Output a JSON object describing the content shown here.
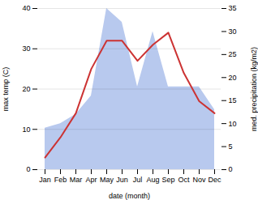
{
  "chart_data": {
    "type": "line",
    "xlabel": "date (month)",
    "ylabel": "max temp (C)",
    "y2label": "med. precipitation (kg/m2)",
    "categories": [
      "Jan",
      "Feb",
      "Mar",
      "Apr",
      "May",
      "Jun",
      "Jul",
      "Aug",
      "Sep",
      "Oct",
      "Nov",
      "Dec"
    ],
    "series": [
      {
        "type": "area",
        "axis": "y2",
        "color": "#b8c9ee",
        "values": [
          9,
          10,
          12,
          16,
          35,
          32,
          18,
          30,
          18,
          18,
          18,
          13
        ]
      },
      {
        "type": "line",
        "color": "#cc3333",
        "values": [
          3,
          8,
          14,
          25,
          32,
          32,
          27,
          31,
          34,
          24,
          17,
          14
        ]
      }
    ],
    "ylim": [
      0,
      40
    ],
    "yticks": [
      0,
      10,
      20,
      30,
      40
    ],
    "y2lim": [
      0,
      35
    ],
    "y2ticks": [
      0,
      5,
      10,
      15,
      20,
      25,
      30,
      35
    ],
    "grid": true
  }
}
